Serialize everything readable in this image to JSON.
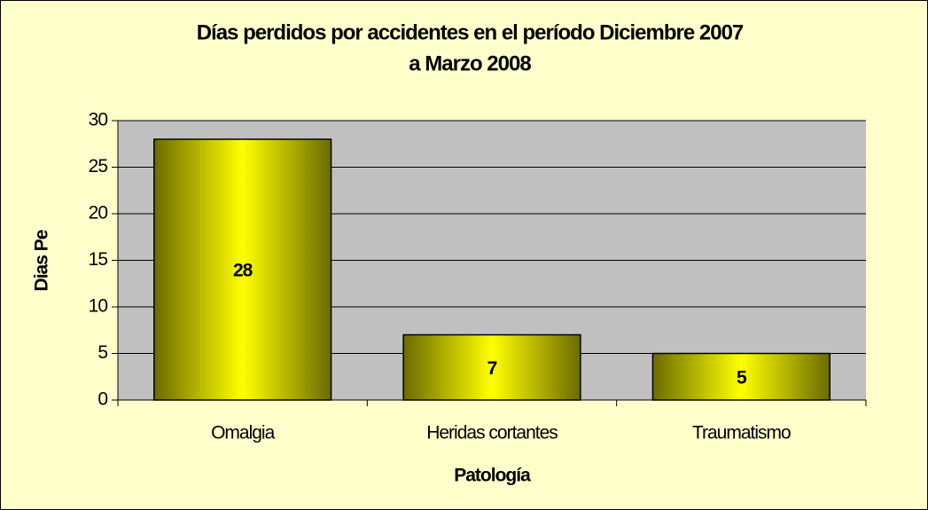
{
  "chart_data": {
    "type": "bar",
    "title": [
      "Días perdidos por accidentes en el período Diciembre 2007",
      "a Marzo 2008"
    ],
    "x_label": "Patología",
    "y_label": "Dias Pe",
    "categories": [
      "Omalgia",
      "Heridas cortantes",
      "Traumatismo"
    ],
    "values": [
      28,
      7,
      5
    ],
    "color": "#ffff00",
    "ylim": [
      0,
      30
    ],
    "yticks": [
      0,
      5,
      10,
      15,
      20,
      25,
      30
    ],
    "grid": true,
    "data_labels": true
  }
}
